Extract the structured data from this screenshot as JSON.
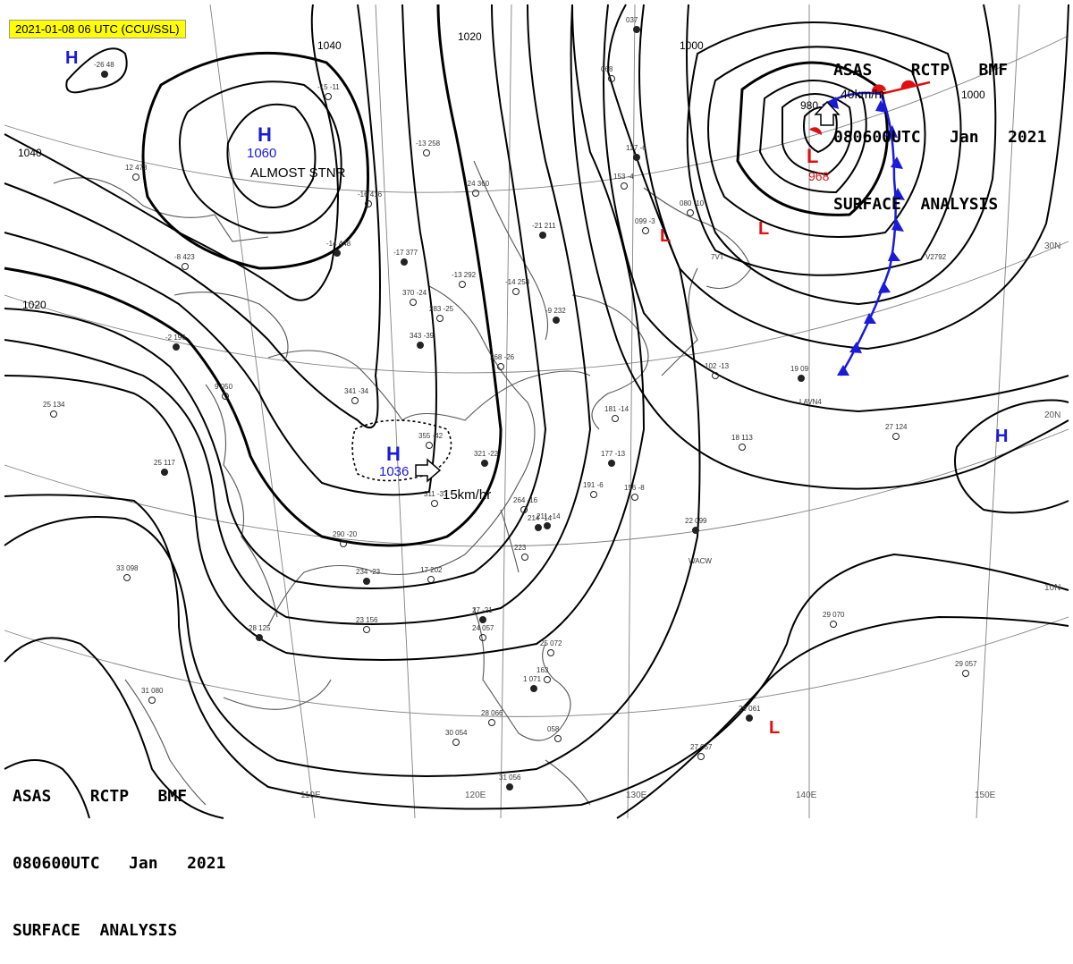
{
  "timestamp_label": "2021-01-08 06 UTC (CCU/SSL)",
  "title": {
    "line1": "ASAS    RCTP   BMF",
    "line2": "080600UTC   Jan   2021",
    "line3": "SURFACE  ANALYSIS"
  },
  "colors": {
    "high": "#1a1adb",
    "low": "#e01010",
    "isobar": "#000000",
    "coast": "#555555",
    "grid": "#808080",
    "timestamp_bg": "#ffff00"
  },
  "pressure_centers": [
    {
      "type": "H",
      "value": "1060",
      "note": "ALMOST STNR"
    },
    {
      "type": "H",
      "value": "1036",
      "motion": "15km/hr"
    },
    {
      "type": "H",
      "value": ""
    },
    {
      "type": "H",
      "value": ""
    },
    {
      "type": "L",
      "value": "968",
      "motion": "40km/hr"
    },
    {
      "type": "L",
      "value": ""
    },
    {
      "type": "L",
      "value": ""
    },
    {
      "type": "L",
      "value": ""
    }
  ],
  "isobar_labels": [
    "1040",
    "1040",
    "1020",
    "1020",
    "1000",
    "1000",
    "980"
  ],
  "lat_labels": [
    "30N",
    "20N",
    "10N"
  ],
  "lon_labels": [
    "110E",
    "120E",
    "130E",
    "140E",
    "150E"
  ],
  "station_plots": [
    "-26 48",
    "341 -34",
    "370 -24",
    "-17 377",
    "-16 416",
    "-15 -11",
    "-14 448",
    "-13 292",
    "-14 258",
    "-21 211",
    "-24 360",
    "-13 258",
    "-9 232",
    "268 -26",
    "283 -25",
    "343 -39",
    "12 473",
    "-8 423",
    "-2 196",
    "9 050",
    "25 134",
    "25 117",
    "33 098",
    "31 080",
    "28 125",
    "23 156",
    "17 202",
    "234 -23",
    "290 -20",
    "311 -37",
    "321 -22",
    "355 -42",
    "264 -16",
    "214 -14",
    "223",
    "24 057",
    "27 -21",
    "25 072",
    "163",
    "1 071",
    "28 066",
    "30 054",
    "31 056",
    "058",
    "27 057",
    "29 061",
    "29 070",
    "29 057",
    "22 099",
    "18 113",
    "27 124",
    "19 09",
    "102 -13",
    "181 -14",
    "177 -13",
    "191 -6",
    "156 -8",
    "211 -14",
    "099 -3",
    "080 -10",
    "127 -6",
    "153 -4",
    "068",
    "037"
  ],
  "station_ids": [
    "LAVN4",
    "WACW",
    "V2792",
    "7VT"
  ]
}
